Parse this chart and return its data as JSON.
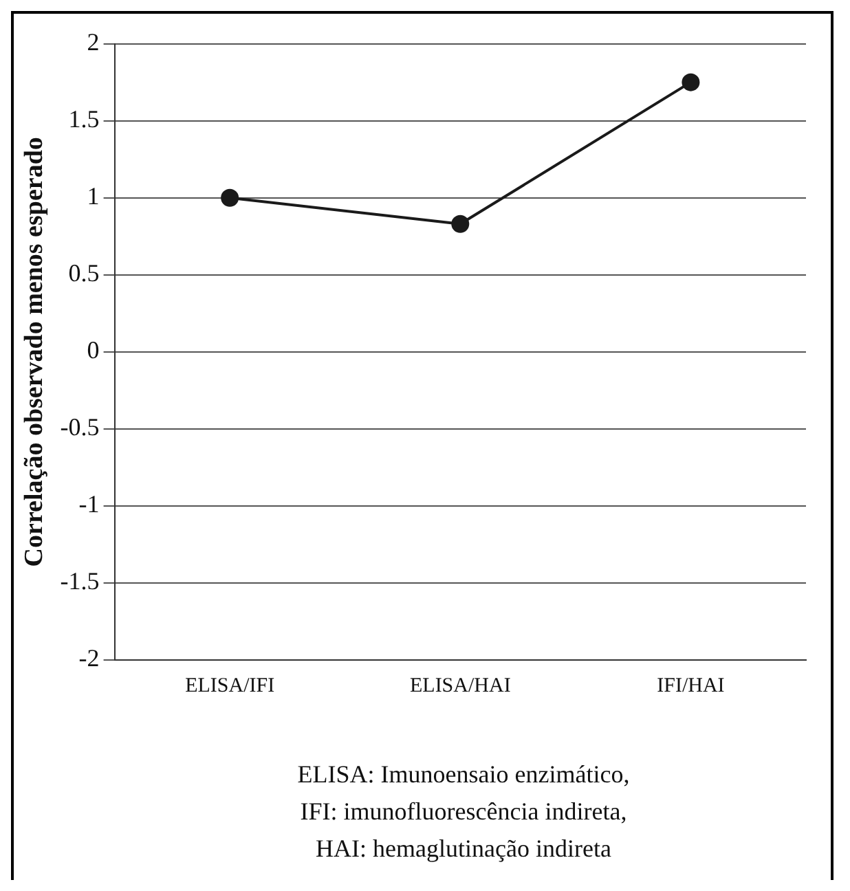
{
  "chart_data": {
    "type": "line",
    "ylabel": "Correlação observado menos esperado",
    "categories": [
      "ELISA/IFI",
      "ELISA/HAI",
      "IFI/HAI"
    ],
    "series": [
      {
        "color": "#1a1a1a",
        "values": [
          1,
          0.83,
          1.75
        ]
      }
    ],
    "ylim": [
      -2,
      2
    ],
    "yticks": [
      -2,
      -1.5,
      -1,
      -0.5,
      0,
      0.5,
      1,
      1.5,
      2
    ],
    "grid": "y",
    "marker": "circle",
    "line_style": "solid",
    "legend": false,
    "annotations": [
      "ELISA: Imunoensaio enzimático,",
      "IFI: imunofluorescência indireta,",
      "HAI: hemaglutinação indireta"
    ]
  }
}
